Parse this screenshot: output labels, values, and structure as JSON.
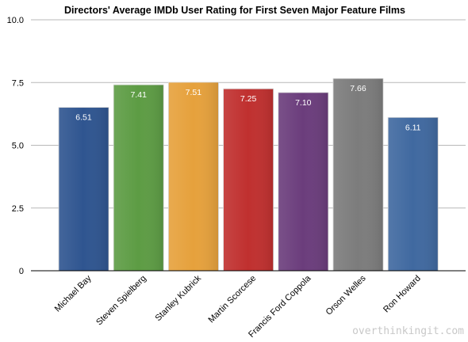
{
  "chart_data": {
    "type": "bar",
    "title": "Directors' Average IMDb User Rating for First Seven Major Feature Films",
    "xlabel": "",
    "ylabel": "",
    "ylim": [
      0,
      10
    ],
    "yticks": [
      "0",
      "2.5",
      "5.0",
      "7.5",
      "10.0"
    ],
    "grid": true,
    "legend": "none",
    "categories": [
      "Michael Bay",
      "Steven Spielberg",
      "Stanley Kubrick",
      "Martin Scorcese",
      "Francis Ford Coppola",
      "Orson Welles",
      "Ron Howard"
    ],
    "values": [
      6.51,
      7.41,
      7.51,
      7.25,
      7.1,
      7.66,
      6.11
    ],
    "data_labels": [
      "6.51",
      "7.41",
      "7.51",
      "7.25",
      "7.10",
      "7.66",
      "6.11"
    ],
    "colors": [
      "#2f5590",
      "#5d9c44",
      "#e6a13c",
      "#c0302f",
      "#6b3d7c",
      "#7c7c7c",
      "#4069a0"
    ]
  },
  "watermark": "overthinkingit.com"
}
